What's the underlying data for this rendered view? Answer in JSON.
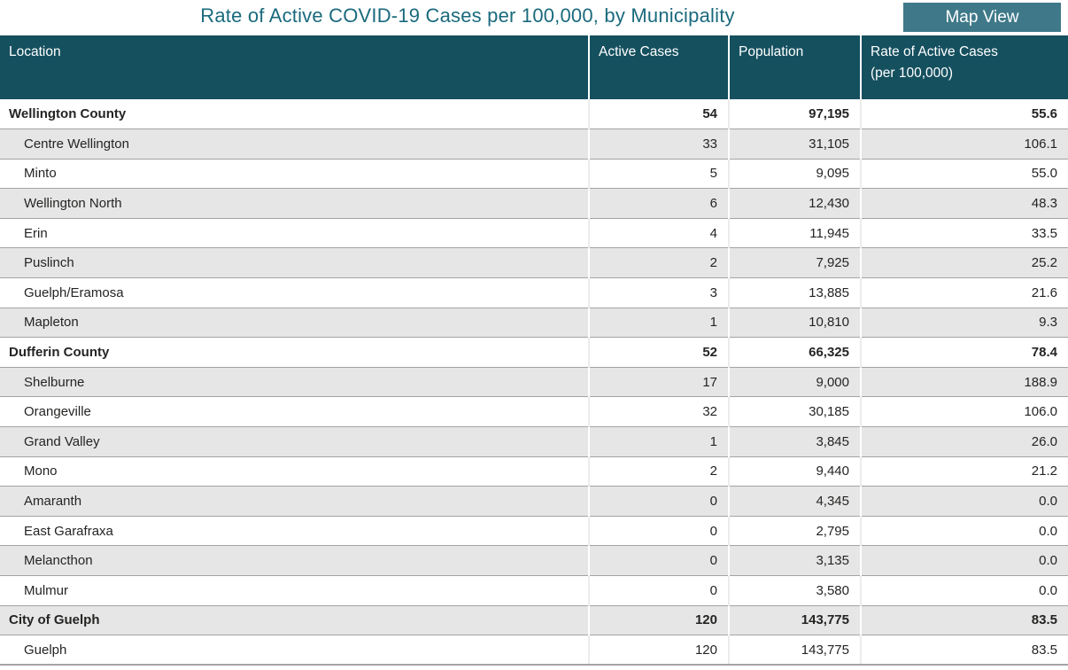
{
  "title": "Rate of Active COVID-19 Cases per 100,000, by Municipality",
  "toolbar": {
    "map_view_label": "Map View"
  },
  "table": {
    "header": {
      "location": "Location",
      "active_cases": "Active Cases",
      "population": "Population",
      "rate_line1": "Rate of Active Cases",
      "rate_line2": "(per 100,000)"
    },
    "rows": [
      {
        "location": "Wellington County",
        "active_cases": "54",
        "population": "97,195",
        "rate": "55.6",
        "group": true
      },
      {
        "location": "Centre Wellington",
        "active_cases": "33",
        "population": "31,105",
        "rate": "106.1",
        "group": false
      },
      {
        "location": "Minto",
        "active_cases": "5",
        "population": "9,095",
        "rate": "55.0",
        "group": false
      },
      {
        "location": "Wellington North",
        "active_cases": "6",
        "population": "12,430",
        "rate": "48.3",
        "group": false
      },
      {
        "location": "Erin",
        "active_cases": "4",
        "population": "11,945",
        "rate": "33.5",
        "group": false
      },
      {
        "location": "Puslinch",
        "active_cases": "2",
        "population": "7,925",
        "rate": "25.2",
        "group": false
      },
      {
        "location": "Guelph/Eramosa",
        "active_cases": "3",
        "population": "13,885",
        "rate": "21.6",
        "group": false
      },
      {
        "location": "Mapleton",
        "active_cases": "1",
        "population": "10,810",
        "rate": "9.3",
        "group": false
      },
      {
        "location": "Dufferin County",
        "active_cases": "52",
        "population": "66,325",
        "rate": "78.4",
        "group": true
      },
      {
        "location": "Shelburne",
        "active_cases": "17",
        "population": "9,000",
        "rate": "188.9",
        "group": false
      },
      {
        "location": "Orangeville",
        "active_cases": "32",
        "population": "30,185",
        "rate": "106.0",
        "group": false
      },
      {
        "location": "Grand Valley",
        "active_cases": "1",
        "population": "3,845",
        "rate": "26.0",
        "group": false
      },
      {
        "location": "Mono",
        "active_cases": "2",
        "population": "9,440",
        "rate": "21.2",
        "group": false
      },
      {
        "location": "Amaranth",
        "active_cases": "0",
        "population": "4,345",
        "rate": "0.0",
        "group": false
      },
      {
        "location": "East Garafraxa",
        "active_cases": "0",
        "population": "2,795",
        "rate": "0.0",
        "group": false
      },
      {
        "location": "Melancthon",
        "active_cases": "0",
        "population": "3,135",
        "rate": "0.0",
        "group": false
      },
      {
        "location": "Mulmur",
        "active_cases": "0",
        "population": "3,580",
        "rate": "0.0",
        "group": false
      },
      {
        "location": "City of Guelph",
        "active_cases": "120",
        "population": "143,775",
        "rate": "83.5",
        "group": true
      },
      {
        "location": "Guelph",
        "active_cases": "120",
        "population": "143,775",
        "rate": "83.5",
        "group": false
      }
    ]
  },
  "colors": {
    "header_background": "#15505F",
    "title_text": "#1A6A7D",
    "button_background": "#3F7989",
    "row_band": "#E6E6E6",
    "row_separator": "#A3A3A3"
  }
}
